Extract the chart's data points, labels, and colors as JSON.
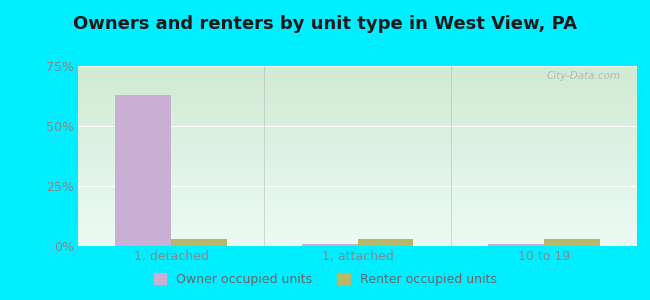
{
  "title": "Owners and renters by unit type in West View, PA",
  "categories": [
    "1, detached",
    "1, attached",
    "10 to 19"
  ],
  "owner_values": [
    63,
    1,
    1
  ],
  "renter_values": [
    3,
    3,
    3
  ],
  "owner_color": "#c9afd4",
  "renter_color": "#b5b86a",
  "ylim": [
    0,
    75
  ],
  "yticks": [
    0,
    25,
    50,
    75
  ],
  "yticklabels": [
    "0%",
    "25%",
    "50%",
    "75%"
  ],
  "bar_width": 0.3,
  "outer_bg": "#00eeff",
  "watermark": "City-Data.com",
  "legend_owner": "Owner occupied units",
  "legend_renter": "Renter occupied units",
  "title_fontsize": 13,
  "tick_fontsize": 9,
  "legend_fontsize": 9
}
